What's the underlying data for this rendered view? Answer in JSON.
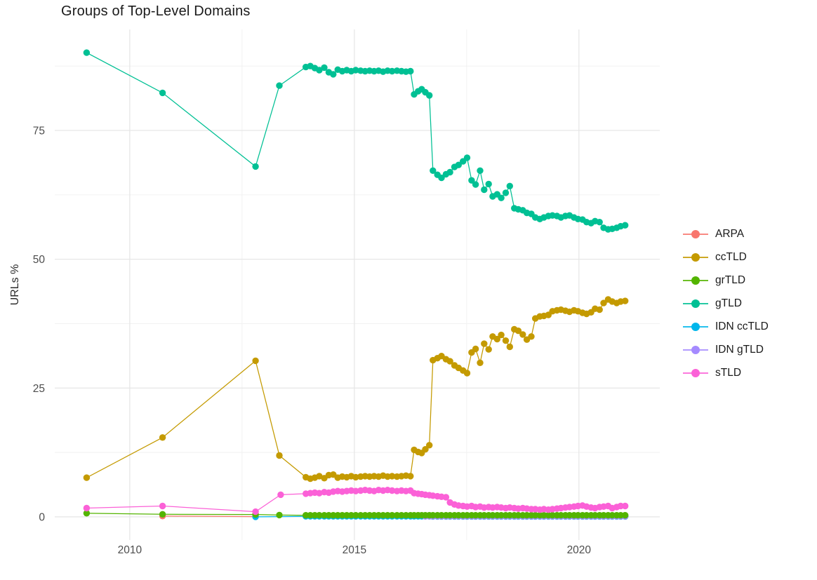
{
  "chart_data": {
    "type": "scatter-line",
    "title": "Groups of Top-Level Domains",
    "xlabel": "",
    "ylabel": "URLs %",
    "grid": true,
    "legend_position": "right",
    "axes": {
      "x": {
        "range": [
          2008.33,
          2021.8
        ],
        "ticks": [
          {
            "label": "2010",
            "value": 2010
          },
          {
            "label": "2015",
            "value": 2015
          },
          {
            "label": "2020",
            "value": 2020
          }
        ],
        "minor": [
          2012.5,
          2017.5
        ]
      },
      "y": {
        "range": [
          -4.5,
          94.6
        ],
        "ticks": [
          {
            "label": "0",
            "value": 0
          },
          {
            "label": "25",
            "value": 25
          },
          {
            "label": "50",
            "value": 50
          },
          {
            "label": "75",
            "value": 75
          }
        ],
        "minor": [
          12.5,
          37.5,
          62.5,
          87.5
        ]
      }
    },
    "dense_x": [
      2013.92,
      2014.02,
      2014.12,
      2014.22,
      2014.33,
      2014.43,
      2014.53,
      2014.63,
      2014.73,
      2014.83,
      2014.93,
      2015.03,
      2015.14,
      2015.24,
      2015.34,
      2015.44,
      2015.54,
      2015.64,
      2015.74,
      2015.84,
      2015.95,
      2016.05,
      2016.15,
      2016.25,
      2016.33,
      2016.42,
      2016.5,
      2016.58,
      2016.67,
      2016.75,
      2016.85,
      2016.94,
      2017.04,
      2017.13,
      2017.23,
      2017.32,
      2017.42,
      2017.51,
      2017.61,
      2017.7,
      2017.8,
      2017.89,
      2017.99,
      2018.08,
      2018.18,
      2018.27,
      2018.37,
      2018.46,
      2018.56,
      2018.65,
      2018.75,
      2018.84,
      2018.94,
      2019.03,
      2019.13,
      2019.22,
      2019.32,
      2019.41,
      2019.51,
      2019.6,
      2019.7,
      2019.79,
      2019.89,
      2019.98,
      2020.08,
      2020.17,
      2020.27,
      2020.36,
      2020.46,
      2020.55,
      2020.65,
      2020.74,
      2020.84,
      2020.93,
      2021.03
    ],
    "series": [
      {
        "name": "ARPA",
        "color": "#F8766D",
        "sparse": [
          [
            2010.73,
            0.15
          ],
          [
            2012.8,
            0.05
          ]
        ],
        "dense_y": null
      },
      {
        "name": "ccTLD",
        "color": "#C49A00",
        "sparse": [
          [
            2009.04,
            7.6
          ],
          [
            2010.73,
            15.4
          ],
          [
            2012.8,
            30.3
          ],
          [
            2013.33,
            11.9
          ]
        ],
        "dense_y": [
          7.7,
          7.4,
          7.6,
          7.9,
          7.5,
          8.1,
          8.2,
          7.6,
          7.8,
          7.7,
          7.9,
          7.7,
          7.8,
          7.9,
          7.8,
          7.9,
          7.8,
          8.0,
          7.8,
          7.9,
          7.8,
          7.9,
          8.0,
          7.9,
          13.0,
          12.6,
          12.4,
          13.1,
          13.9,
          30.4,
          30.8,
          31.2,
          30.6,
          30.2,
          29.4,
          28.9,
          28.4,
          27.9,
          31.9,
          32.6,
          29.9,
          33.6,
          32.5,
          35.0,
          34.5,
          35.3,
          34.2,
          33.0,
          36.4,
          36.1,
          35.4,
          34.4,
          35.0,
          38.5,
          38.9,
          39.0,
          39.2,
          39.9,
          40.1,
          40.2,
          40.0,
          39.8,
          40.1,
          39.9,
          39.6,
          39.4,
          39.7,
          40.4,
          40.2,
          41.5,
          42.2,
          41.8,
          41.5,
          41.8,
          41.9
        ]
      },
      {
        "name": "grTLD",
        "color": "#53B400",
        "sparse": [
          [
            2009.04,
            0.7
          ],
          [
            2010.73,
            0.5
          ],
          [
            2012.8,
            0.45
          ],
          [
            2013.33,
            0.35
          ]
        ],
        "dense_y": [
          0.3,
          0.3,
          0.3,
          0.3,
          0.3,
          0.3,
          0.3,
          0.3,
          0.3,
          0.3,
          0.3,
          0.3,
          0.3,
          0.3,
          0.3,
          0.3,
          0.3,
          0.3,
          0.3,
          0.3,
          0.3,
          0.3,
          0.3,
          0.3,
          0.3,
          0.3,
          0.3,
          0.3,
          0.3,
          0.3,
          0.3,
          0.3,
          0.3,
          0.3,
          0.3,
          0.3,
          0.3,
          0.3,
          0.3,
          0.3,
          0.3,
          0.3,
          0.3,
          0.3,
          0.3,
          0.3,
          0.3,
          0.3,
          0.3,
          0.3,
          0.3,
          0.3,
          0.3,
          0.3,
          0.3,
          0.3,
          0.3,
          0.3,
          0.3,
          0.3,
          0.3,
          0.3,
          0.3,
          0.3,
          0.3,
          0.3,
          0.3,
          0.3,
          0.3,
          0.3,
          0.3,
          0.3,
          0.3,
          0.3,
          0.3
        ]
      },
      {
        "name": "gTLD",
        "color": "#00C094",
        "sparse": [
          [
            2009.04,
            90.1
          ],
          [
            2010.73,
            82.3
          ],
          [
            2012.8,
            68.0
          ],
          [
            2013.33,
            83.7
          ]
        ],
        "dense_y": [
          87.3,
          87.5,
          87.1,
          86.7,
          87.2,
          86.3,
          85.9,
          86.8,
          86.5,
          86.7,
          86.5,
          86.7,
          86.6,
          86.5,
          86.6,
          86.5,
          86.6,
          86.4,
          86.6,
          86.5,
          86.6,
          86.5,
          86.4,
          86.5,
          82.0,
          82.6,
          83.0,
          82.4,
          81.8,
          67.2,
          66.4,
          65.8,
          66.5,
          66.9,
          67.9,
          68.3,
          69.0,
          69.7,
          65.3,
          64.5,
          67.2,
          63.5,
          64.6,
          62.2,
          62.6,
          61.9,
          62.9,
          64.2,
          59.9,
          59.7,
          59.5,
          59.0,
          58.8,
          58.1,
          57.8,
          58.1,
          58.4,
          58.5,
          58.4,
          58.1,
          58.4,
          58.5,
          58.1,
          57.8,
          57.7,
          57.2,
          57.0,
          57.4,
          57.2,
          56.1,
          55.8,
          55.9,
          56.1,
          56.4,
          56.6
        ]
      },
      {
        "name": "IDN ccTLD",
        "color": "#00B6EB",
        "sparse": [
          [
            2012.8,
            0.0
          ]
        ],
        "dense_y": [
          0.1,
          0.1,
          0.1,
          0.1,
          0.1,
          0.1,
          0.1,
          0.1,
          0.1,
          0.1,
          0.1,
          0.1,
          0.1,
          0.1,
          0.1,
          0.1,
          0.1,
          0.1,
          0.1,
          0.1,
          0.1,
          0.1,
          0.1,
          0.1,
          0.1,
          0.1,
          0.1,
          0.1,
          0.1,
          0.08,
          0.08,
          0.08,
          0.08,
          0.08,
          0.08,
          0.08,
          0.08,
          0.08,
          0.08,
          0.08,
          0.08,
          0.08,
          0.08,
          0.08,
          0.08,
          0.08,
          0.08,
          0.08,
          0.08,
          0.08,
          0.08,
          0.08,
          0.08,
          0.08,
          0.08,
          0.08,
          0.08,
          0.08,
          0.08,
          0.08,
          0.08,
          0.08,
          0.08,
          0.08,
          0.08,
          0.08,
          0.08,
          0.08,
          0.08,
          0.08,
          0.08,
          0.08,
          0.08,
          0.08,
          0.08
        ]
      },
      {
        "name": "IDN gTLD",
        "color": "#A58AFF",
        "sparse": [],
        "dense_y": [
          null,
          null,
          null,
          null,
          null,
          null,
          null,
          null,
          null,
          null,
          null,
          null,
          null,
          null,
          null,
          null,
          null,
          null,
          null,
          null,
          null,
          null,
          null,
          null,
          null,
          null,
          null,
          0.1,
          0.1,
          0.1,
          0.1,
          0.1,
          0.1,
          0.1,
          0.1,
          0.1,
          0.1,
          0.1,
          0.1,
          0.1,
          0.1,
          0.1,
          0.1,
          0.1,
          0.1,
          0.1,
          0.1,
          0.1,
          0.1,
          0.1,
          0.1,
          0.1,
          0.1,
          0.1,
          0.1,
          0.1,
          0.1,
          0.1,
          0.1,
          0.1,
          0.1,
          0.1,
          0.1,
          0.1,
          0.1,
          0.1,
          0.1,
          0.1,
          0.1,
          0.1,
          0.1,
          0.1,
          0.1,
          0.1,
          0.1
        ]
      },
      {
        "name": "sTLD",
        "color": "#FB61D7",
        "sparse": [
          [
            2009.04,
            1.7
          ],
          [
            2010.73,
            2.1
          ],
          [
            2012.8,
            1.0
          ],
          [
            2013.36,
            4.3
          ]
        ],
        "dense_y": [
          4.5,
          4.6,
          4.7,
          4.6,
          4.8,
          4.7,
          4.9,
          5.0,
          4.9,
          5.0,
          5.1,
          5.0,
          5.1,
          5.2,
          5.1,
          5.0,
          5.2,
          5.1,
          5.2,
          5.1,
          5.0,
          5.1,
          5.0,
          5.1,
          4.6,
          4.5,
          4.4,
          4.3,
          4.2,
          4.1,
          4.0,
          3.9,
          3.8,
          2.8,
          2.4,
          2.2,
          2.1,
          2.0,
          2.1,
          1.9,
          2.0,
          1.8,
          1.9,
          1.8,
          1.9,
          1.8,
          1.7,
          1.8,
          1.7,
          1.6,
          1.7,
          1.6,
          1.5,
          1.5,
          1.4,
          1.5,
          1.4,
          1.5,
          1.6,
          1.7,
          1.8,
          1.9,
          2.0,
          2.1,
          2.2,
          2.0,
          1.8,
          1.7,
          1.9,
          2.0,
          2.1,
          1.7,
          1.9,
          2.1,
          2.1
        ]
      }
    ]
  },
  "legend": {
    "items": [
      {
        "label": "ARPA",
        "color": "#F8766D"
      },
      {
        "label": "ccTLD",
        "color": "#C49A00"
      },
      {
        "label": "grTLD",
        "color": "#53B400"
      },
      {
        "label": "gTLD",
        "color": "#00C094"
      },
      {
        "label": "IDN ccTLD",
        "color": "#00B6EB"
      },
      {
        "label": "IDN gTLD",
        "color": "#A58AFF"
      },
      {
        "label": "sTLD",
        "color": "#FB61D7"
      }
    ]
  },
  "style": {
    "grid_major_color": "#E7E7E7",
    "grid_minor_color": "#F0F0F0",
    "tick_label_color": "#4d4d4d",
    "background": "#ffffff"
  }
}
